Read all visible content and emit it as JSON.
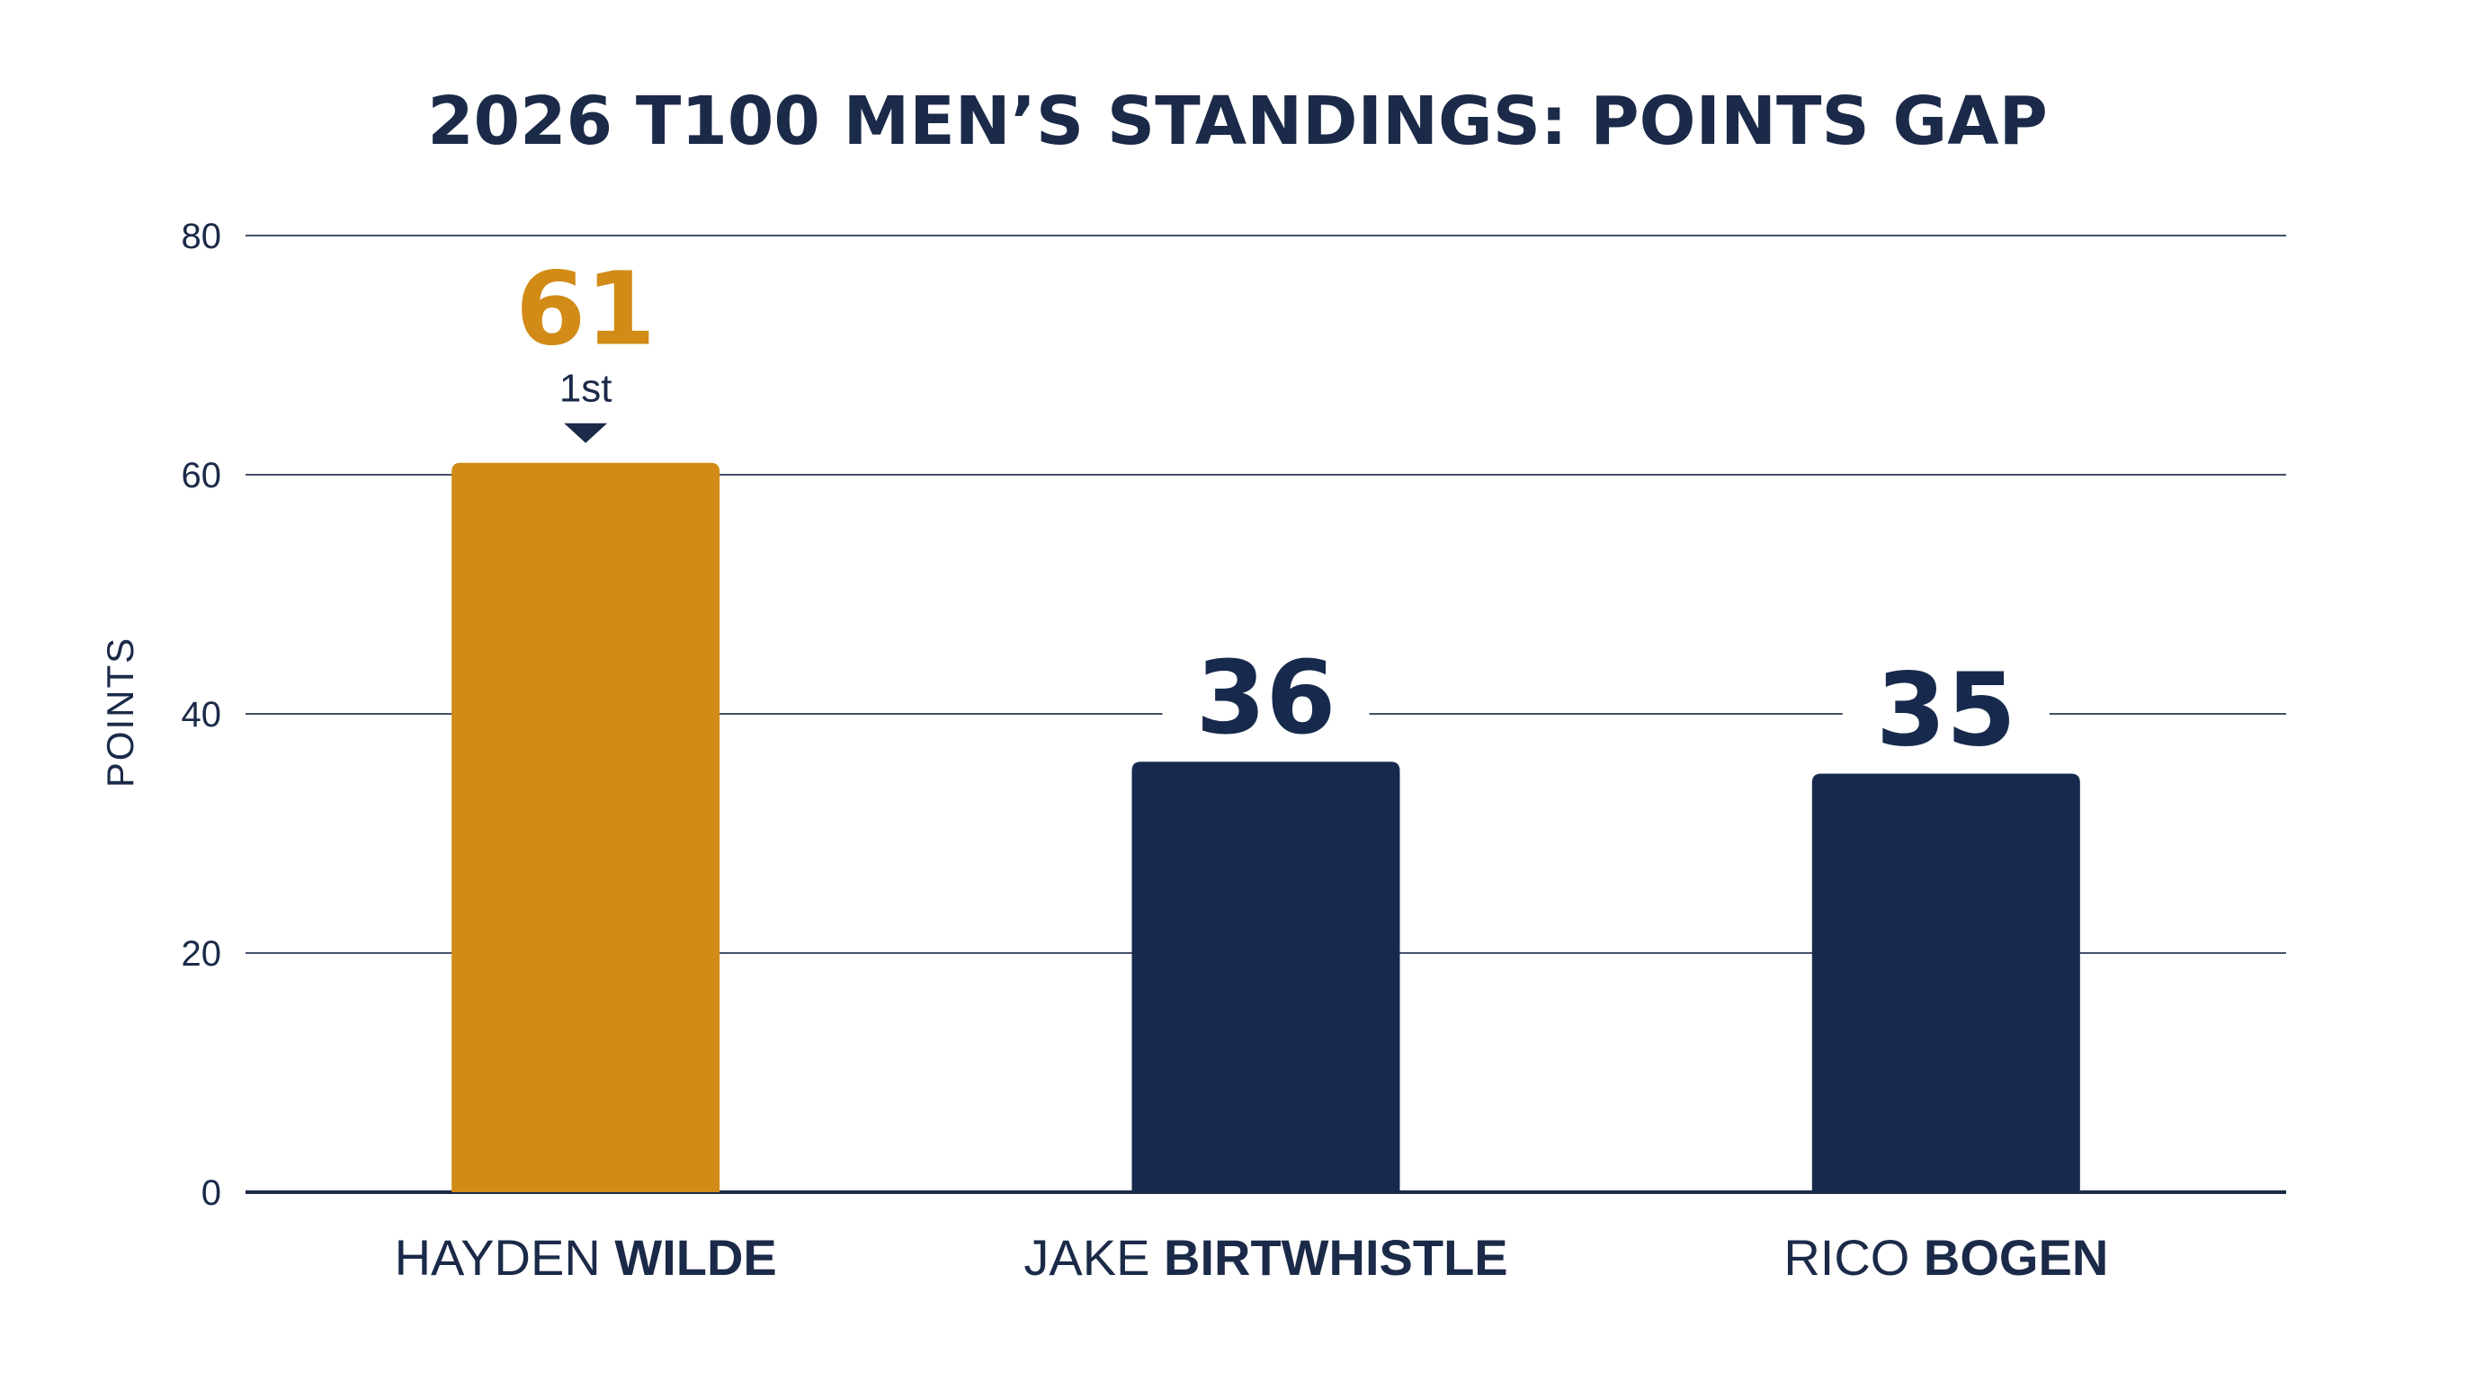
{
  "chart_data": {
    "type": "bar",
    "title": "2026 T100 MEN’S STANDINGS: POINTS GAP",
    "ylabel": "POINTS",
    "xlabel": "",
    "ylim": [
      0,
      80
    ],
    "yticks": [
      0,
      20,
      40,
      60,
      80
    ],
    "grid": true,
    "legend": "none",
    "categories": [
      {
        "first": "HAYDEN",
        "last": "WILDE"
      },
      {
        "first": "JAKE",
        "last": "BIRTWHISTLE"
      },
      {
        "first": "RICO",
        "last": "BOGEN"
      }
    ],
    "values": [
      61,
      36,
      35
    ],
    "annotations": [
      {
        "category_index": 0,
        "text": "1st"
      }
    ],
    "colors": {
      "highlight": "#d18b16",
      "bar": "#172a4d",
      "text": "#1b2a48",
      "grid": "#44506a",
      "baseline": "#1b2a48"
    },
    "highlight_index": 0
  }
}
